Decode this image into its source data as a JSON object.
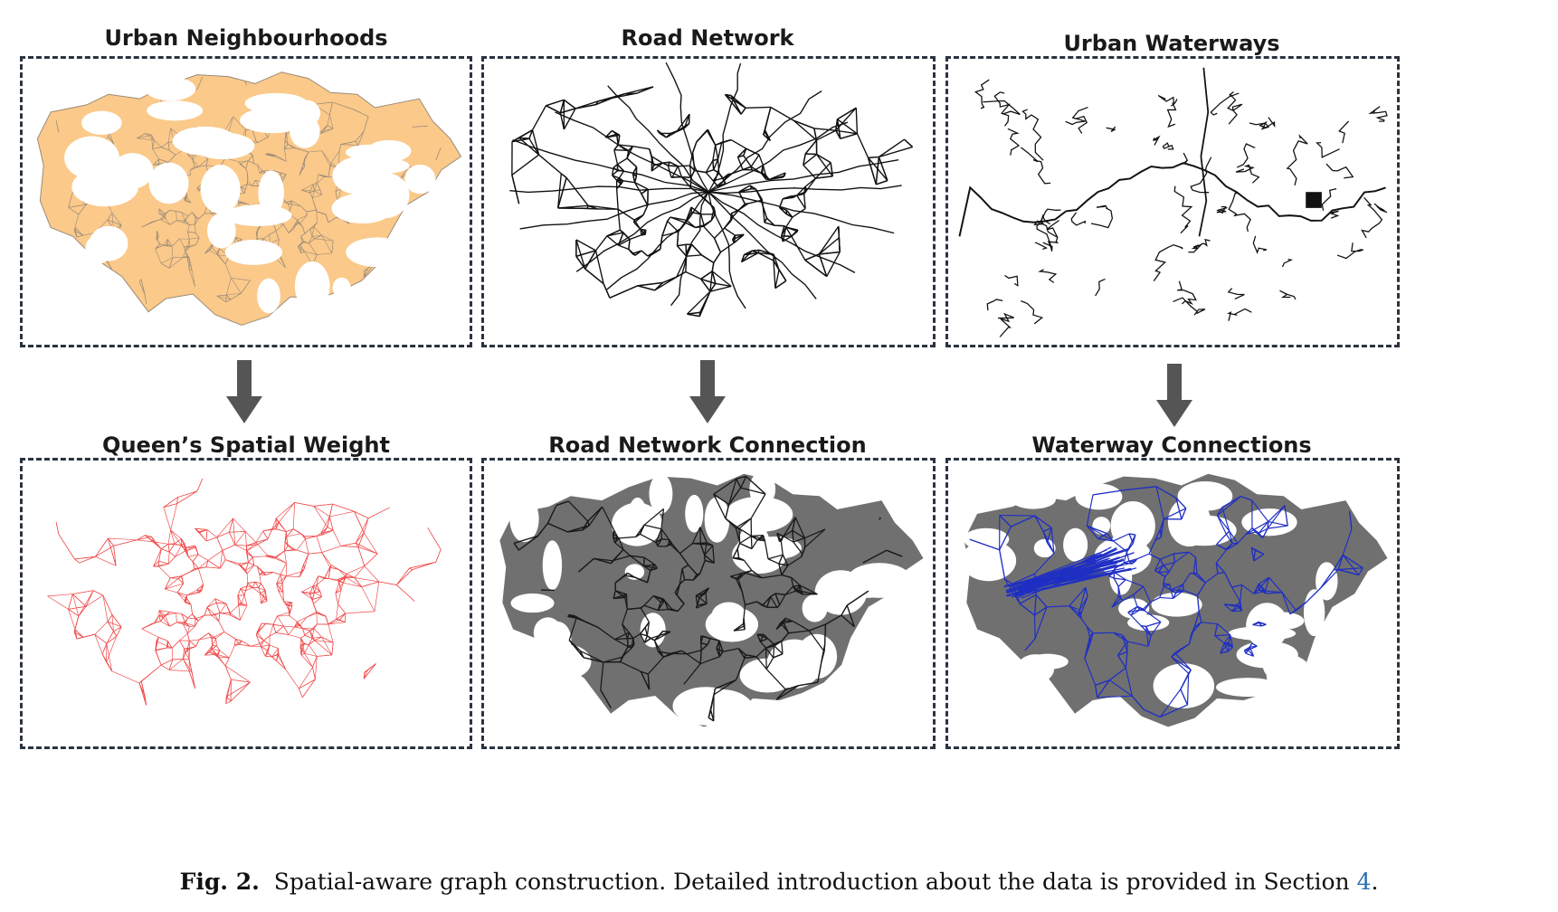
{
  "colors": {
    "neighbourhood_fill": "#fbc98a",
    "neighbourhood_stroke": "#9a8a78",
    "road_line": "#111111",
    "waterway_line": "#111111",
    "queen_line": "#f04b4b",
    "map_grey": "#707070",
    "road_conn_line": "#1a1a1a",
    "waterway_conn_line": "#1f2fc4",
    "border": "#2a3340",
    "arrow": "#555555"
  },
  "panels": {
    "urban_neighbourhoods": {
      "title": "Urban Neighbourhoods",
      "icon": "london-neighbourhood-map"
    },
    "road_network": {
      "title": "Road Network",
      "icon": "london-road-network-map"
    },
    "urban_waterways": {
      "title": "Urban Waterways",
      "icon": "london-waterways-map"
    },
    "queens_spatial_weight": {
      "title": "Queen’s Spatial Weight",
      "icon": "queen-spatial-weight-graph"
    },
    "road_network_connection": {
      "title": "Road Network Connection",
      "icon": "road-connection-graph"
    },
    "waterway_connections": {
      "title": "Waterway Connections",
      "icon": "waterway-connection-graph"
    }
  },
  "caption": {
    "label": "Fig. 2.",
    "text": "Spatial-aware graph construction. Detailed introduction about the data is provided in Section",
    "section_ref": "4",
    "end": "."
  }
}
